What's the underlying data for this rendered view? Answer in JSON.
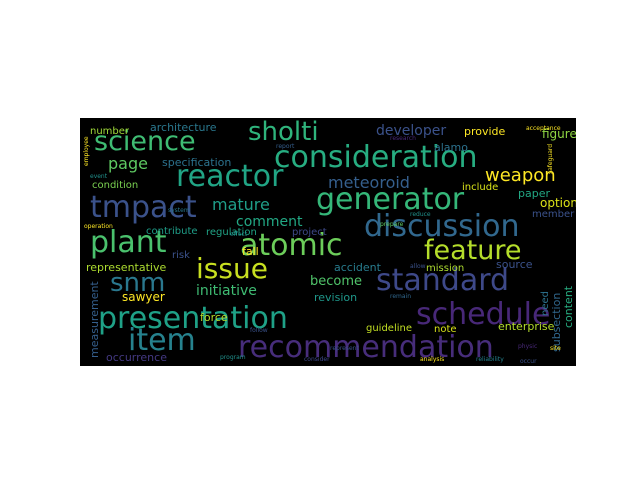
{
  "word_cloud": {
    "background": "#000000",
    "palette": [
      "#440154",
      "#3b528b",
      "#21918c",
      "#5ec962",
      "#fde725"
    ],
    "words": [
      {
        "text": "sholti",
        "color": "#2fb47c"
      },
      {
        "text": "science",
        "color": "#3fbc73"
      },
      {
        "text": "consideration",
        "color": "#27ad81"
      },
      {
        "text": "reactor",
        "color": "#21a585"
      },
      {
        "text": "generator",
        "color": "#35b779"
      },
      {
        "text": "tmpact",
        "color": "#3b528b"
      },
      {
        "text": "discussion",
        "color": "#31688e"
      },
      {
        "text": "plant",
        "color": "#4ac16d"
      },
      {
        "text": "atomic",
        "color": "#6ccd5a"
      },
      {
        "text": "feature",
        "color": "#b5de2b"
      },
      {
        "text": "issue",
        "color": "#c8e020"
      },
      {
        "text": "standard",
        "color": "#3e4989"
      },
      {
        "text": "snm",
        "color": "#2a788e"
      },
      {
        "text": "presentation",
        "color": "#1fa187"
      },
      {
        "text": "schedule",
        "color": "#482878"
      },
      {
        "text": "item",
        "color": "#26828e"
      },
      {
        "text": "recommendation",
        "color": "#472d7b"
      },
      {
        "text": "weapon",
        "color": "#fde725"
      },
      {
        "text": "meteoroid",
        "color": "#355f8d"
      },
      {
        "text": "developer",
        "color": "#3b528b"
      },
      {
        "text": "page",
        "color": "#5ec962"
      },
      {
        "text": "mature",
        "color": "#1f9e89"
      },
      {
        "text": "comment",
        "color": "#22a884"
      },
      {
        "text": "architecture",
        "color": "#2a788e"
      },
      {
        "text": "specification",
        "color": "#2c728e"
      },
      {
        "text": "number",
        "color": "#a0da39"
      },
      {
        "text": "condition",
        "color": "#7ad151"
      },
      {
        "text": "provide",
        "color": "#fde725"
      },
      {
        "text": "figure",
        "color": "#90d743"
      },
      {
        "text": "alamo",
        "color": "#2c728e"
      },
      {
        "text": "include",
        "color": "#d8e219"
      },
      {
        "text": "paper",
        "color": "#22a884"
      },
      {
        "text": "option",
        "color": "#dde318"
      },
      {
        "text": "member",
        "color": "#3b528b"
      },
      {
        "text": "contribute",
        "color": "#1f9e89"
      },
      {
        "text": "regulation",
        "color": "#20a486"
      },
      {
        "text": "project",
        "color": "#3e4989"
      },
      {
        "text": "representative",
        "color": "#addc30"
      },
      {
        "text": "fall",
        "color": "#fde725"
      },
      {
        "text": "sawyer",
        "color": "#fde725"
      },
      {
        "text": "initiative",
        "color": "#3fbc73"
      },
      {
        "text": "become",
        "color": "#50c46a"
      },
      {
        "text": "accident",
        "color": "#287c8e"
      },
      {
        "text": "mission",
        "color": "#addc30"
      },
      {
        "text": "source",
        "color": "#3b528b"
      },
      {
        "text": "revision",
        "color": "#1f988b"
      },
      {
        "text": "risk",
        "color": "#3b528b"
      },
      {
        "text": "content",
        "color": "#27ad81"
      },
      {
        "text": "subsection",
        "color": "#31688e"
      },
      {
        "text": "need",
        "color": "#2c728e"
      },
      {
        "text": "measurement",
        "color": "#355f8d"
      },
      {
        "text": "force",
        "color": "#b5de2b"
      },
      {
        "text": "guideline",
        "color": "#c2df23"
      },
      {
        "text": "note",
        "color": "#d8e219"
      },
      {
        "text": "enterprise",
        "color": "#b5de2b"
      },
      {
        "text": "occurrence",
        "color": "#443983"
      },
      {
        "text": "occur",
        "color": "#3b528b"
      },
      {
        "text": "system",
        "color": "#2a788e"
      },
      {
        "text": "report",
        "color": "#355f8d"
      },
      {
        "text": "effect",
        "color": "#21918c"
      },
      {
        "text": "operation",
        "color": "#fde725"
      },
      {
        "text": "follow",
        "color": "#3b528b"
      },
      {
        "text": "program",
        "color": "#21918c"
      },
      {
        "text": "consider",
        "color": "#3e4989"
      },
      {
        "text": "reliability",
        "color": "#26828e"
      },
      {
        "text": "analysis",
        "color": "#fde725"
      },
      {
        "text": "research",
        "color": "#482878"
      },
      {
        "text": "represent",
        "color": "#3b528b"
      },
      {
        "text": "remain",
        "color": "#31688e"
      },
      {
        "text": "reduce",
        "color": "#21918c"
      },
      {
        "text": "allow",
        "color": "#3b528b"
      },
      {
        "text": "prepare",
        "color": "#5ec962"
      },
      {
        "text": "safeguard",
        "color": "#fde725"
      },
      {
        "text": "employee",
        "color": "#fde725"
      },
      {
        "text": "event",
        "color": "#21918c"
      },
      {
        "text": "acceptance",
        "color": "#fde725"
      },
      {
        "text": "physic",
        "color": "#482878"
      },
      {
        "text": "site",
        "color": "#fde725"
      }
    ]
  }
}
